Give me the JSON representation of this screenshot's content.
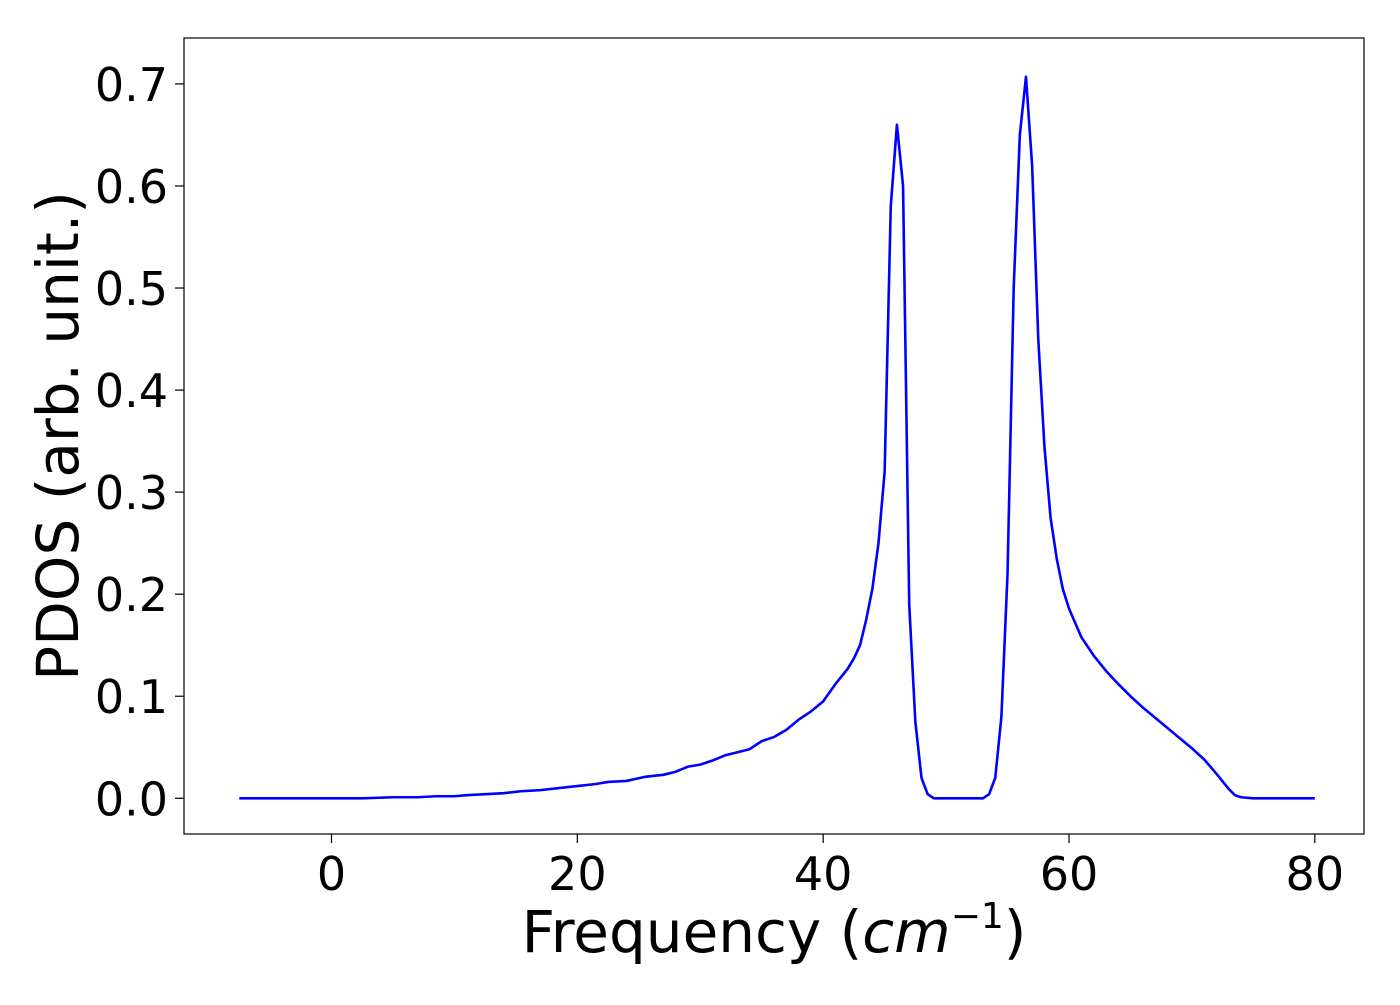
{
  "chart_data": {
    "type": "line",
    "xlabel_text": "Frequency (",
    "xlabel_math_base": "cm",
    "xlabel_math_exp": "−1",
    "xlabel_close": ")",
    "ylabel": "PDOS (arb. unit.)",
    "xlim": [
      -12,
      84
    ],
    "ylim": [
      -0.035,
      0.745
    ],
    "xticks": [
      0,
      20,
      40,
      60,
      80
    ],
    "xtick_labels": [
      "0",
      "20",
      "40",
      "60",
      "80"
    ],
    "yticks": [
      0.0,
      0.1,
      0.2,
      0.3,
      0.4,
      0.5,
      0.6,
      0.7
    ],
    "ytick_labels": [
      "0.0",
      "0.1",
      "0.2",
      "0.3",
      "0.4",
      "0.5",
      "0.6",
      "0.7"
    ],
    "grid": false,
    "line_color": "#0000ff",
    "series": [
      {
        "x": [
          -7.5,
          -4,
          0,
          2.5,
          5,
          7,
          8.5,
          10,
          11,
          12.5,
          14,
          15.5,
          17,
          18.5,
          20,
          21.5,
          22.5,
          24,
          25.5,
          27,
          28,
          29,
          30,
          31,
          32,
          33,
          34,
          35,
          36,
          37,
          38,
          39,
          40,
          41,
          42,
          42.5,
          43,
          43.5,
          44,
          44.5,
          45,
          45.5,
          46,
          46.5,
          47,
          47.5,
          48,
          48.5,
          49,
          50,
          51,
          52,
          53,
          53.5,
          54,
          54.5,
          55,
          55.5,
          56,
          56.5,
          57,
          57.5,
          58,
          58.5,
          59,
          59.5,
          60,
          61,
          62,
          63,
          64,
          65,
          66,
          67,
          68,
          69,
          70,
          71,
          72,
          73,
          73.5,
          74,
          75,
          76,
          78,
          80
        ],
        "y": [
          0.0,
          0.0,
          0.0,
          0.0,
          0.001,
          0.001,
          0.002,
          0.002,
          0.003,
          0.004,
          0.005,
          0.007,
          0.008,
          0.01,
          0.012,
          0.014,
          0.016,
          0.017,
          0.021,
          0.023,
          0.026,
          0.031,
          0.033,
          0.037,
          0.042,
          0.045,
          0.048,
          0.056,
          0.06,
          0.067,
          0.077,
          0.085,
          0.095,
          0.112,
          0.127,
          0.137,
          0.15,
          0.175,
          0.205,
          0.25,
          0.32,
          0.58,
          0.66,
          0.6,
          0.19,
          0.075,
          0.02,
          0.004,
          0.0,
          0.0,
          0.0,
          0.0,
          0.0,
          0.004,
          0.02,
          0.08,
          0.22,
          0.5,
          0.65,
          0.707,
          0.62,
          0.45,
          0.345,
          0.275,
          0.235,
          0.205,
          0.186,
          0.158,
          0.14,
          0.125,
          0.112,
          0.1,
          0.089,
          0.079,
          0.069,
          0.059,
          0.049,
          0.038,
          0.024,
          0.009,
          0.003,
          0.001,
          0.0,
          0.0,
          0.0,
          0.0
        ]
      }
    ]
  }
}
